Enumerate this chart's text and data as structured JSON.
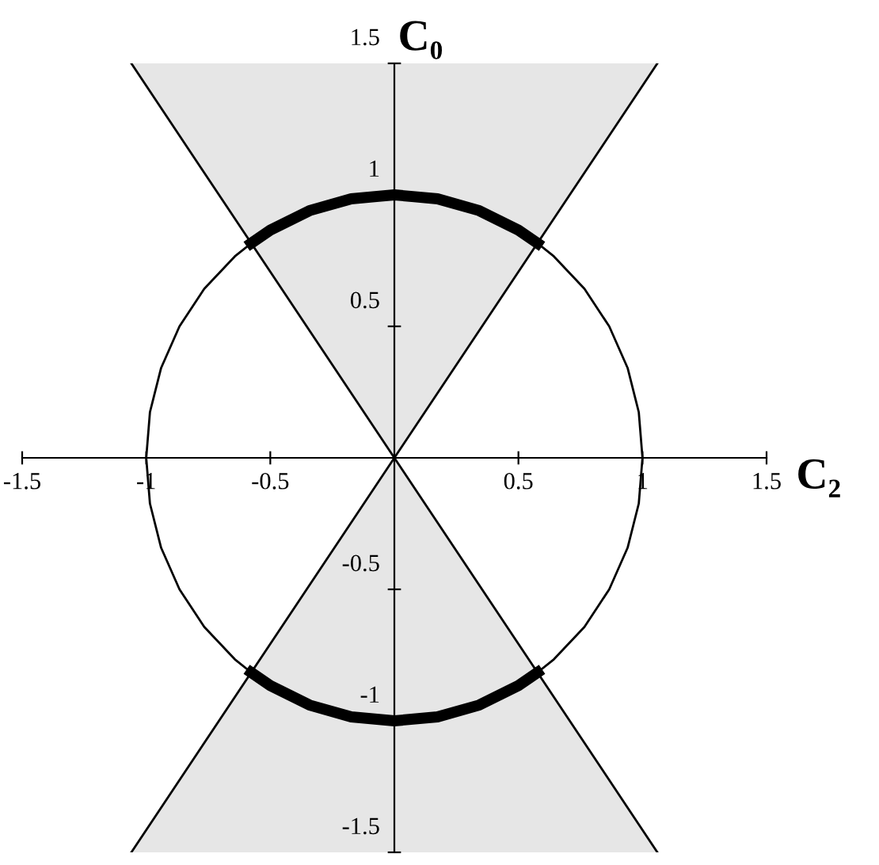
{
  "chart_data": {
    "type": "line",
    "xlabel": "C₂",
    "ylabel": "C₀",
    "xlim": [
      -1.5,
      1.5
    ],
    "ylim": [
      -1.5,
      1.5
    ],
    "xticks": [
      {
        "value": -1.5,
        "label": "-1.5"
      },
      {
        "value": -1,
        "label": "-1"
      },
      {
        "value": -0.5,
        "label": "-0.5"
      },
      {
        "value": 0.5,
        "label": "0.5"
      },
      {
        "value": 1,
        "label": "1"
      },
      {
        "value": 1.5,
        "label": "1.5"
      }
    ],
    "yticks": [
      {
        "value": -1.5,
        "label": "-1.5"
      },
      {
        "value": -1,
        "label": "-1"
      },
      {
        "value": -0.5,
        "label": "-0.5"
      },
      {
        "value": 0.5,
        "label": "0.5"
      },
      {
        "value": 1,
        "label": "1"
      },
      {
        "value": 1.5,
        "label": "1.5"
      }
    ],
    "grid": false,
    "legend": false,
    "marker": "none",
    "line_style": "solid",
    "series": [
      {
        "color": "#000000",
        "x": [
          -1.06,
          0,
          1.06
        ],
        "values": [
          1.5,
          0,
          1.5
        ],
        "lower": [
          1.5,
          0,
          1.5
        ],
        "upper": [
          1.5,
          1.5,
          1.5
        ]
      },
      {
        "color": "#000000",
        "x": [
          -1.06,
          0,
          1.06
        ],
        "values": [
          -1.5,
          0,
          -1.5
        ],
        "lower": [
          -1.5,
          -1.5,
          -1.5
        ],
        "upper": [
          -1.5,
          0,
          -1.5
        ]
      },
      {
        "color": "#000000",
        "x": [
          0.577,
          0.643,
          0.766,
          0.866,
          0.94,
          0.985,
          1,
          0.985,
          0.94,
          0.866,
          0.766,
          0.643,
          0.577
        ],
        "values": [
          0.816,
          0.766,
          0.643,
          0.5,
          0.342,
          0.174,
          0,
          -0.174,
          -0.342,
          -0.5,
          -0.643,
          -0.766,
          -0.816
        ]
      },
      {
        "color": "#000000",
        "x": [
          -0.577,
          -0.643,
          -0.766,
          -0.866,
          -0.94,
          -0.985,
          -1,
          -0.985,
          -0.94,
          -0.866,
          -0.766,
          -0.643,
          -0.577
        ],
        "values": [
          0.816,
          0.766,
          0.643,
          0.5,
          0.342,
          0.174,
          0,
          -0.174,
          -0.342,
          -0.5,
          -0.643,
          -0.766,
          -0.816
        ]
      },
      {
        "color": "#000000",
        "x": [
          0.577,
          0.5,
          0.342,
          0.174,
          0,
          -0.174,
          -0.342,
          -0.5,
          -0.577
        ],
        "values": [
          0.816,
          0.866,
          0.94,
          0.985,
          1,
          0.985,
          0.94,
          0.866,
          0.816
        ]
      },
      {
        "color": "#000000",
        "x": [
          0.577,
          0.5,
          0.342,
          0.174,
          0,
          -0.174,
          -0.342,
          -0.5,
          -0.577
        ],
        "values": [
          -0.816,
          -0.866,
          -0.94,
          -0.985,
          -1,
          -0.985,
          -0.94,
          -0.866,
          -0.816
        ]
      }
    ]
  }
}
